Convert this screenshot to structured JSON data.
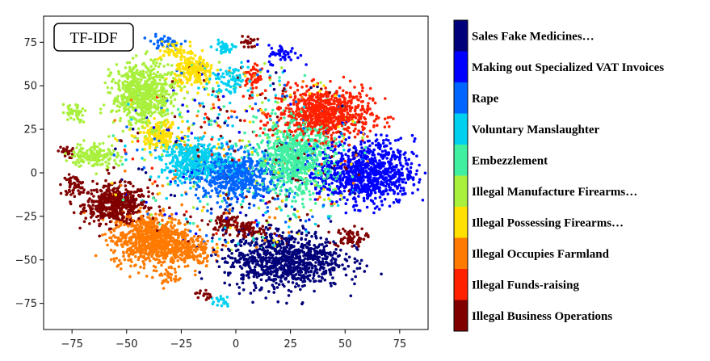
{
  "chart_data": {
    "type": "scatter",
    "title": "TF-IDF",
    "xlim": [
      -88,
      88
    ],
    "ylim": [
      -90,
      90
    ],
    "xticks": [
      "−75",
      "−50",
      "−25",
      "0",
      "25",
      "50",
      "75"
    ],
    "xtick_values": [
      -75,
      -50,
      -25,
      0,
      25,
      50,
      75
    ],
    "yticks": [
      "75",
      "50",
      "25",
      "0",
      "−25",
      "−50",
      "−75"
    ],
    "ytick_values": [
      75,
      50,
      25,
      0,
      -25,
      -50,
      -75
    ],
    "grid": false,
    "colorbar_placement": "right",
    "series": [
      {
        "name": "Illegal Business Operations",
        "color": "#800000",
        "clusters": [
          [
            -55,
            -18,
            8,
            6,
            500
          ],
          [
            -74,
            -7,
            3,
            3,
            60
          ],
          [
            5,
            -33,
            5,
            3,
            80
          ],
          [
            -5,
            -28,
            4,
            3,
            60
          ],
          [
            52,
            -37,
            4,
            3,
            70
          ],
          [
            -78,
            12,
            2,
            2,
            20
          ],
          [
            6,
            75,
            2,
            2,
            20
          ],
          [
            -15,
            -70,
            2,
            2,
            15
          ]
        ],
        "scatter_count": 110
      },
      {
        "name": "Illegal Funds-raising",
        "color": "#ff2000",
        "clusters": [
          [
            40,
            34,
            12,
            8,
            750
          ],
          [
            8,
            55,
            2,
            4,
            50
          ]
        ],
        "scatter_count": 50
      },
      {
        "name": "Illegal Occupies Farmland",
        "color": "#ff7a00",
        "clusters": [
          [
            -39,
            -38,
            10,
            8,
            800
          ],
          [
            -22,
            -45,
            6,
            5,
            140
          ],
          [
            -30,
            -60,
            3,
            3,
            30
          ]
        ],
        "scatter_count": 60
      },
      {
        "name": "Illegal Possessing Firearms…",
        "color": "#ffe000",
        "clusters": [
          [
            -19,
            58,
            5,
            5,
            210
          ],
          [
            -35,
            22,
            5,
            4,
            160
          ],
          [
            -28,
            70,
            4,
            3,
            50
          ]
        ],
        "scatter_count": 70
      },
      {
        "name": "Illegal Manufacture Firearms…",
        "color": "#a8f03c",
        "clusters": [
          [
            -42,
            45,
            8,
            10,
            650
          ],
          [
            -65,
            10,
            6,
            4,
            150
          ],
          [
            -74,
            35,
            3,
            3,
            40
          ]
        ],
        "scatter_count": 70
      },
      {
        "name": "Embezzlement",
        "color": "#40f0a0",
        "clusters": [
          [
            27,
            8,
            10,
            11,
            780
          ]
        ],
        "scatter_count": 60
      },
      {
        "name": "Voluntary Manslaughter",
        "color": "#00d0f0",
        "clusters": [
          [
            -18,
            7,
            9,
            6,
            430
          ],
          [
            -3,
            53,
            5,
            5,
            80
          ],
          [
            -5,
            72,
            3,
            2,
            40
          ],
          [
            -6,
            -73,
            2,
            2,
            20
          ]
        ],
        "scatter_count": 100
      },
      {
        "name": "Rape",
        "color": "#0064ff",
        "clusters": [
          [
            0,
            -2,
            11,
            8,
            560
          ],
          [
            -33,
            75,
            4,
            2,
            40
          ]
        ],
        "scatter_count": 110
      },
      {
        "name": "Making out Specialized VAT Invoices",
        "color": "#0000ff",
        "clusters": [
          [
            60,
            0,
            12,
            10,
            870
          ],
          [
            22,
            68,
            4,
            3,
            50
          ]
        ],
        "scatter_count": 60
      },
      {
        "name": "Sales Fake Medicines…",
        "color": "#00007a",
        "clusters": [
          [
            22,
            -50,
            15,
            9,
            900
          ]
        ],
        "scatter_count": 50
      }
    ]
  }
}
